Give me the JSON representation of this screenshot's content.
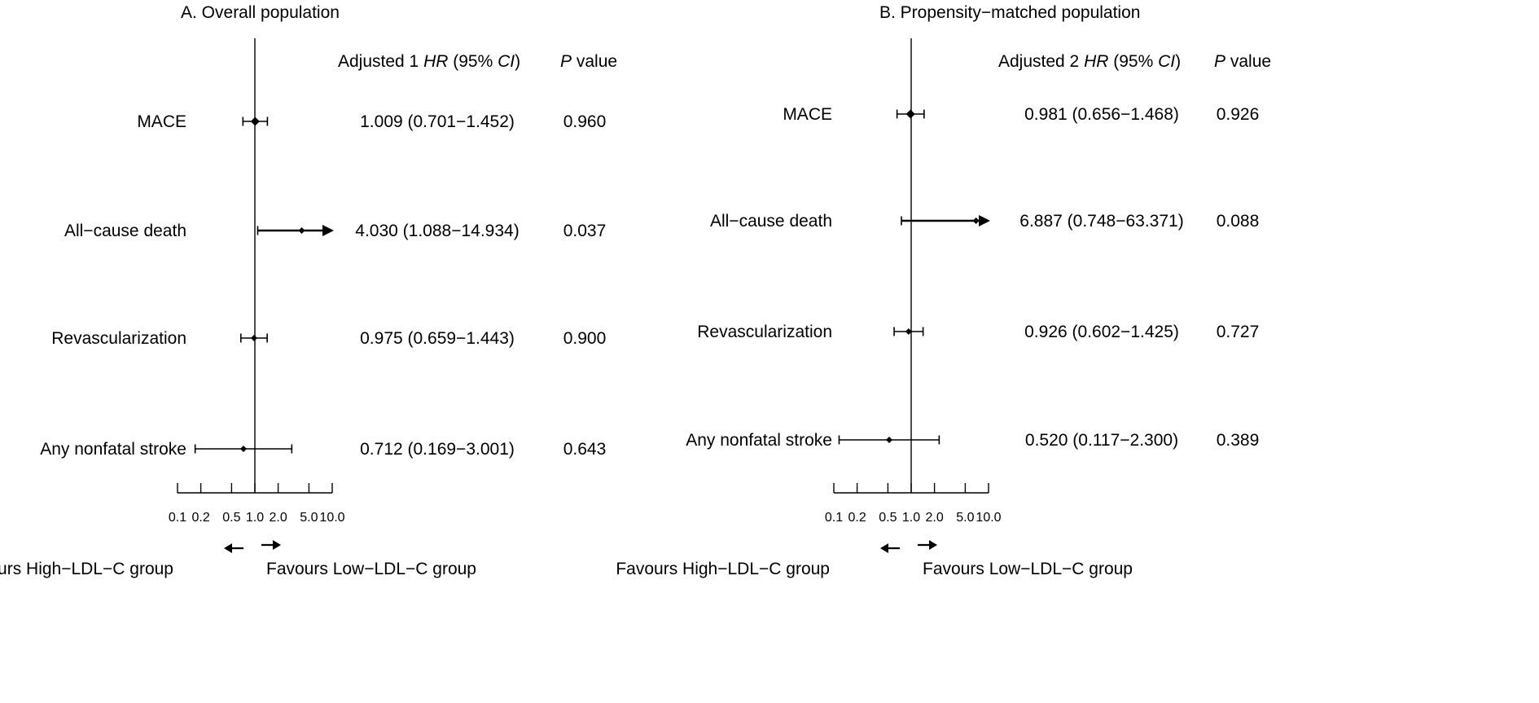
{
  "chart_data": [
    {
      "type": "forest",
      "title": "A. Overall population",
      "x_scale": "log",
      "xlim": [
        0.1,
        10.0
      ],
      "x_ticks": [
        "0.1",
        "0.2",
        "0.5",
        "1.0",
        "2.0",
        "5.0",
        "10.0"
      ],
      "reference_line": 1.0,
      "column_headers": {
        "hr_prefix": "Adjusted 1 ",
        "hr_italic": "HR",
        "hr_mid": " (95% ",
        "ci_italic": "CI",
        "hr_close": ")",
        "p_italic": "P",
        "p_suffix": " value"
      },
      "footer": {
        "left": "Favours High−LDL−C group",
        "right": "Favours Low−LDL−C group"
      },
      "rows": [
        {
          "label": "MACE",
          "hr": 1.009,
          "lower": 0.701,
          "upper": 1.452,
          "hr_text": "1.009 (0.701−1.452)",
          "p": "0.960"
        },
        {
          "label": "All−cause death",
          "hr": 4.03,
          "lower": 1.088,
          "upper": 14.934,
          "hr_text": "4.030 (1.088−14.934)",
          "p": "0.037"
        },
        {
          "label": "Revascularization",
          "hr": 0.975,
          "lower": 0.659,
          "upper": 1.443,
          "hr_text": "0.975 (0.659−1.443)",
          "p": "0.900"
        },
        {
          "label": "Any nonfatal stroke",
          "hr": 0.712,
          "lower": 0.169,
          "upper": 3.001,
          "hr_text": "0.712 (0.169−3.001)",
          "p": "0.643"
        }
      ]
    },
    {
      "type": "forest",
      "title": "B. Propensity−matched population",
      "x_scale": "log",
      "xlim": [
        0.1,
        10.0
      ],
      "x_ticks": [
        "0.1",
        "0.2",
        "0.5",
        "1.0",
        "2.0",
        "5.0",
        "10.0"
      ],
      "reference_line": 1.0,
      "column_headers": {
        "hr_prefix": "Adjusted 2 ",
        "hr_italic": "HR",
        "hr_mid": " (95% ",
        "ci_italic": "CI",
        "hr_close": ")",
        "p_italic": "P",
        "p_suffix": " value"
      },
      "footer": {
        "left": "Favours High−LDL−C group",
        "right": "Favours Low−LDL−C group"
      },
      "rows": [
        {
          "label": "MACE",
          "hr": 0.981,
          "lower": 0.656,
          "upper": 1.468,
          "hr_text": "0.981 (0.656−1.468)",
          "p": "0.926"
        },
        {
          "label": "All−cause death",
          "hr": 6.887,
          "lower": 0.748,
          "upper": 63.371,
          "hr_text": "6.887 (0.748−63.371)",
          "p": "0.088"
        },
        {
          "label": "Revascularization",
          "hr": 0.926,
          "lower": 0.602,
          "upper": 1.425,
          "hr_text": "0.926 (0.602−1.425)",
          "p": "0.727"
        },
        {
          "label": "Any nonfatal stroke",
          "hr": 0.52,
          "lower": 0.117,
          "upper": 2.3,
          "hr_text": "0.520 (0.117−2.300)",
          "p": "0.389"
        }
      ]
    }
  ]
}
